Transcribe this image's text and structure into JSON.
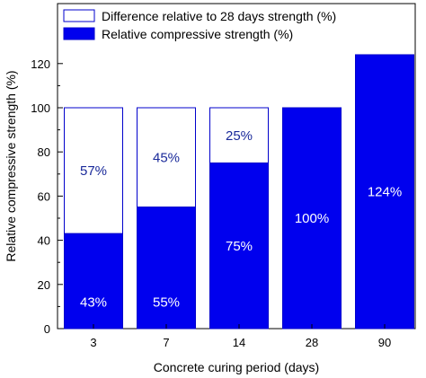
{
  "chart_data": {
    "type": "bar",
    "stacked": true,
    "xlabel": "Concrete curing period (days)",
    "ylabel": "Relative compressive strength (%)",
    "ylim": [
      0,
      130
    ],
    "yticks": [
      0,
      20,
      40,
      60,
      80,
      100,
      120
    ],
    "categories": [
      "3",
      "7",
      "14",
      "28",
      "90"
    ],
    "series": [
      {
        "name": "Relative compressive strength (%)",
        "values": [
          43,
          55,
          75,
          100,
          124
        ],
        "labels": [
          "43%",
          "55%",
          "75%",
          "100%",
          "124%"
        ],
        "color": "#0000ee",
        "label_color": "#ffffff"
      },
      {
        "name": "Difference relative to 28 days strength (%)",
        "values": [
          57,
          45,
          25,
          0,
          0
        ],
        "labels": [
          "57%",
          "45%",
          "25%",
          "",
          ""
        ],
        "color": "#ffffff",
        "stroke": "#0000cc",
        "label_color": "#1a2a9a"
      }
    ],
    "legend": {
      "placement": "top-left"
    },
    "grid": false
  }
}
